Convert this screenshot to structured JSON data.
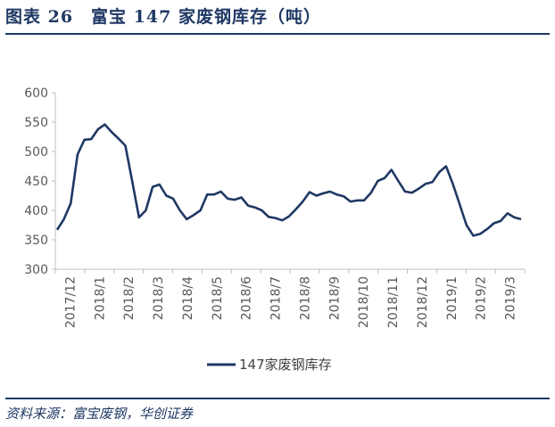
{
  "figure_title": "图表 26　富宝 147 家废钢库存（吨）",
  "source_note": "资料来源：富宝废钢，华创证券",
  "colors": {
    "series": "#1f3864",
    "accent": "#1f3864",
    "axis": "#bfbfbf"
  },
  "chart_data": {
    "type": "line",
    "title": "",
    "xlabel": "",
    "ylabel": "",
    "ylim": [
      300,
      600
    ],
    "yticks": [
      300,
      350,
      400,
      450,
      500,
      550,
      600
    ],
    "grid": false,
    "legend": "bottom",
    "x_tick_labels": [
      "2017/12",
      "2018/1",
      "2018/2",
      "2018/3",
      "2018/4",
      "2018/5",
      "2018/6",
      "2018/7",
      "2018/8",
      "2018/9",
      "2018/10",
      "2018/11",
      "2018/12",
      "2019/1",
      "2019/2",
      "2019/3"
    ],
    "series": [
      {
        "name": "147家废钢库存",
        "values": [
          367,
          385,
          412,
          495,
          520,
          521,
          538,
          546,
          533,
          522,
          510,
          450,
          388,
          400,
          440,
          444,
          425,
          420,
          400,
          385,
          392,
          400,
          427,
          427,
          432,
          420,
          418,
          422,
          408,
          405,
          400,
          389,
          387,
          383,
          390,
          402,
          415,
          431,
          425,
          429,
          432,
          427,
          424,
          415,
          417,
          417,
          430,
          450,
          455,
          469,
          450,
          432,
          430,
          437,
          445,
          448,
          465,
          475,
          445,
          410,
          375,
          357,
          360,
          368,
          378,
          382,
          395,
          388,
          385
        ]
      }
    ]
  }
}
